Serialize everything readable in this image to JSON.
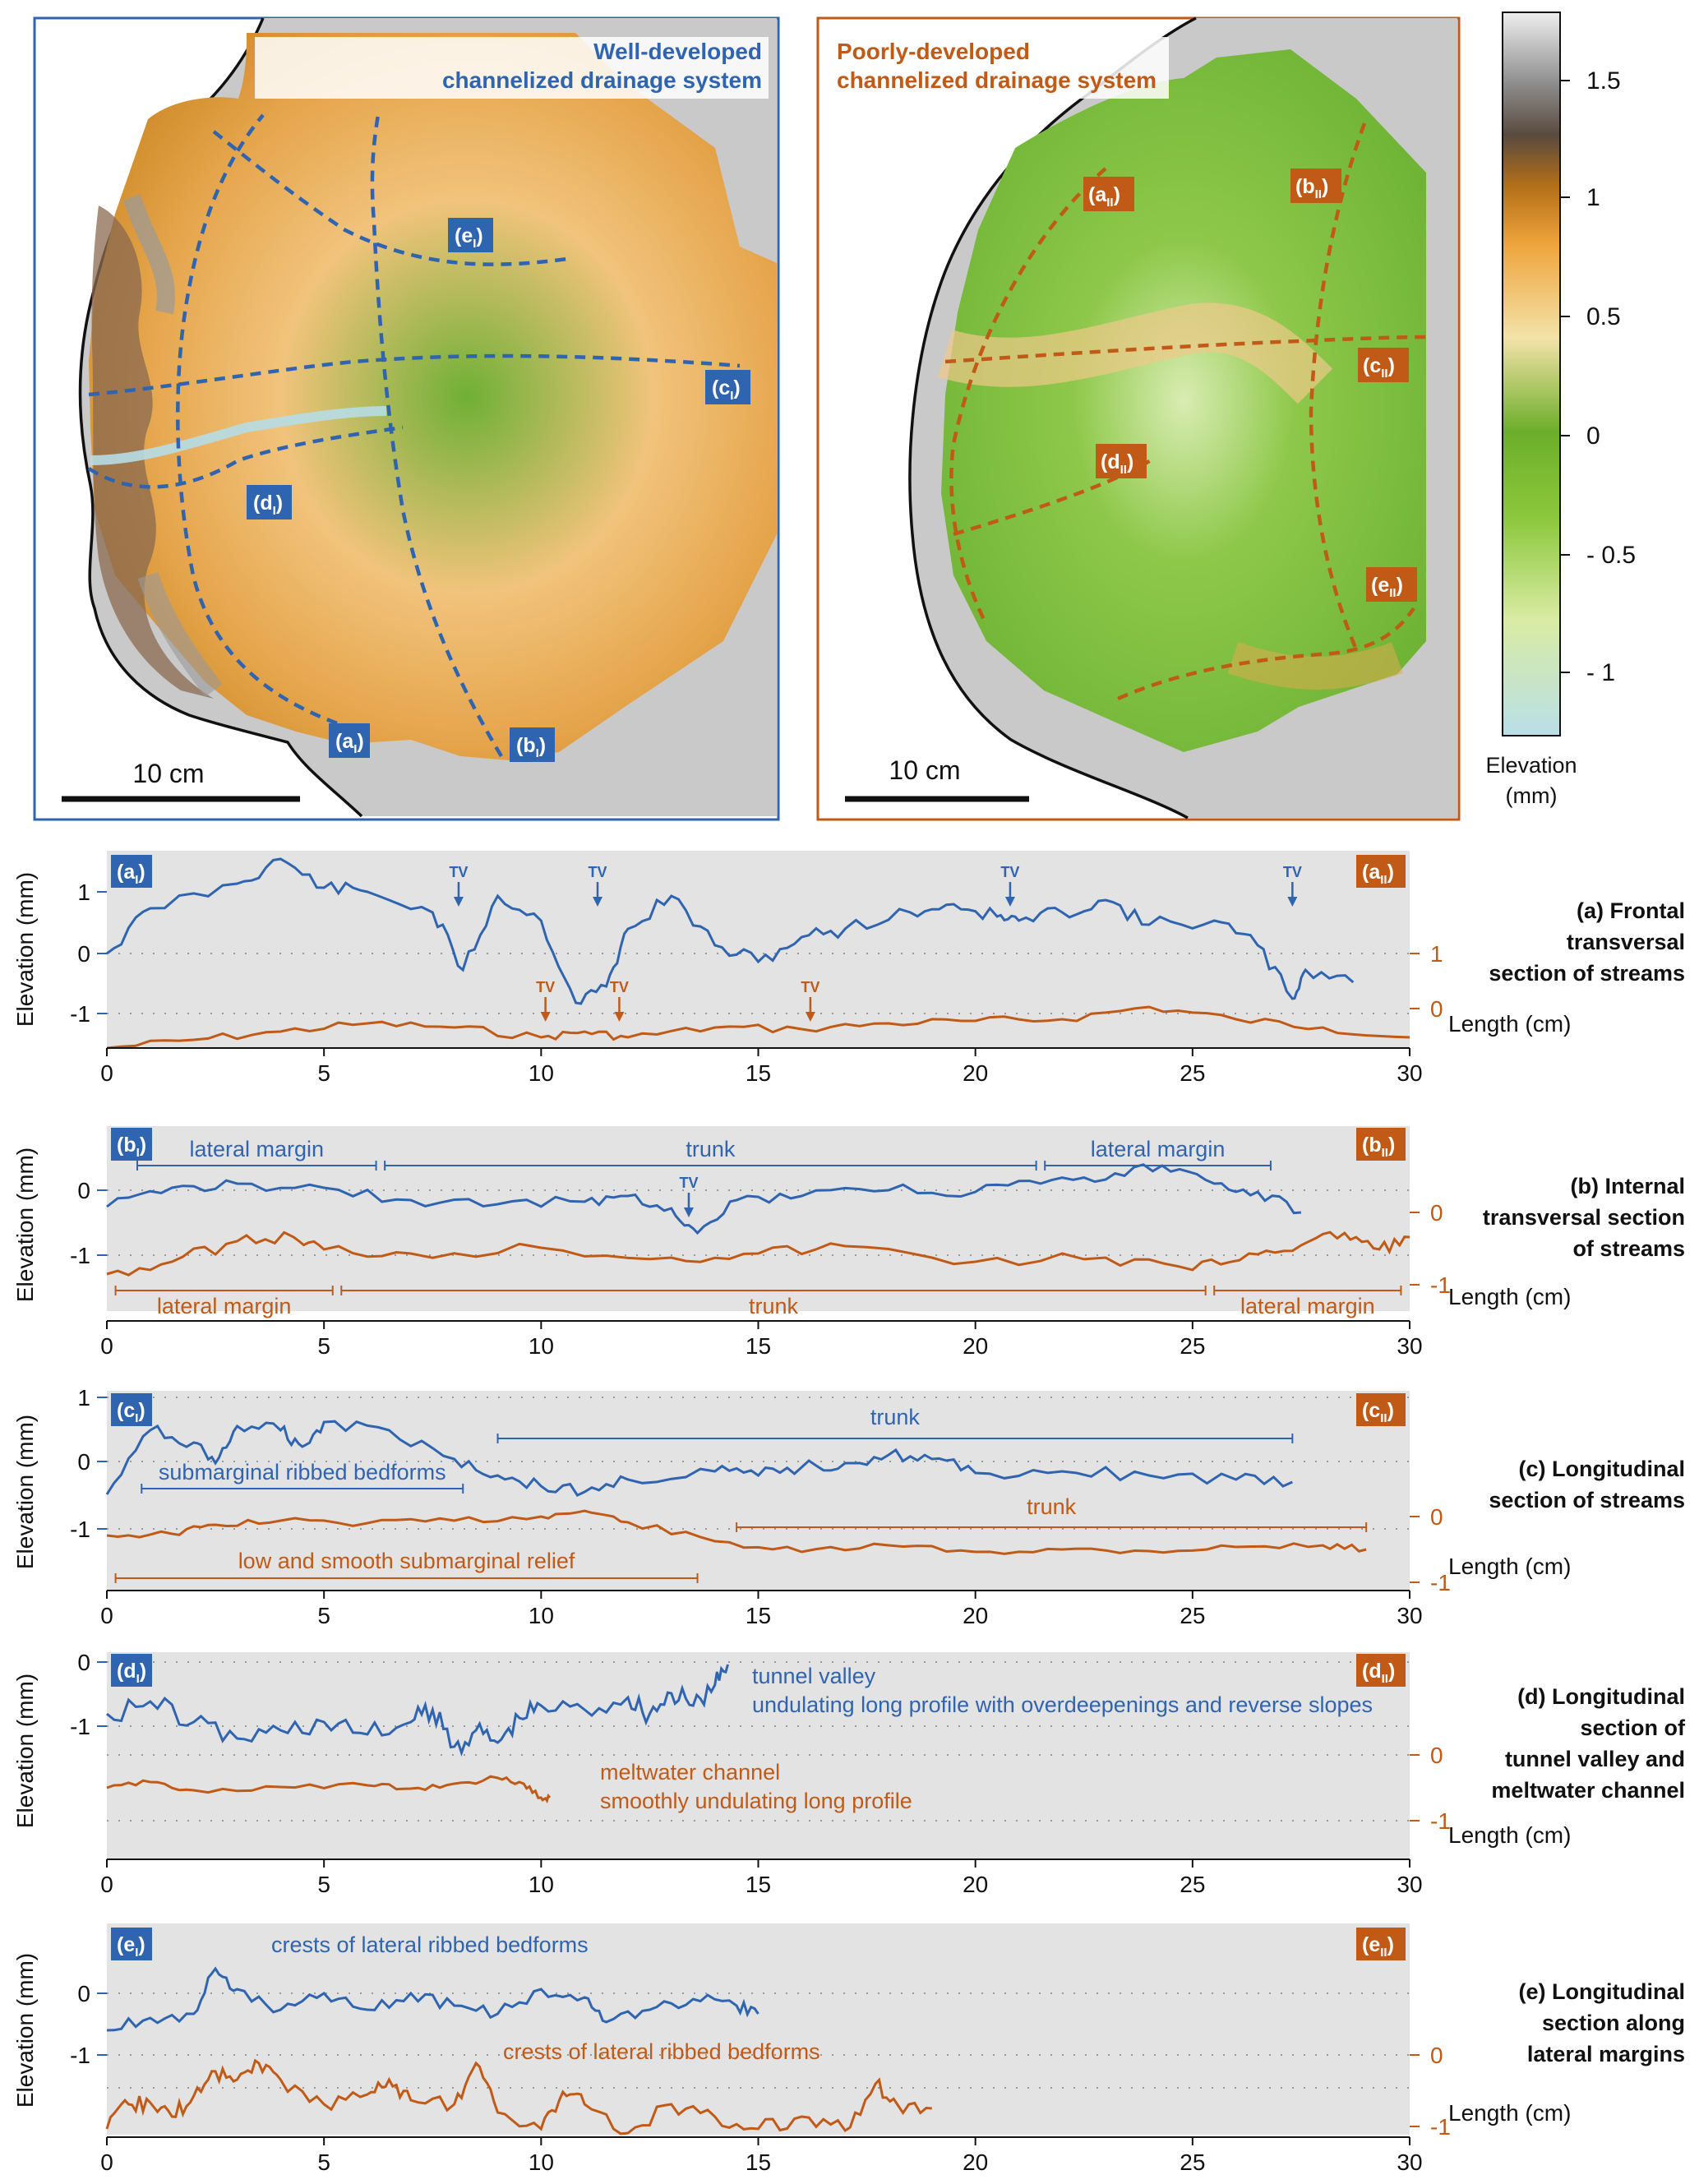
{
  "colors": {
    "blue": "#2f64b0",
    "orange": "#c05a16",
    "panel_bg": "#e3e3e3",
    "map_grey": "#c9c9c9"
  },
  "maps": {
    "left_title": [
      "Well-developed",
      "channelized drainage system"
    ],
    "right_title": [
      "Poorly-developed",
      "channelized drainage system"
    ],
    "scale_label": "10 cm",
    "left_tags": [
      "(a",
      "(b",
      "(c",
      "(d",
      "(e"
    ],
    "left_sub": "I",
    "right_sub": "II",
    "sub_close": ")"
  },
  "colorbar": {
    "ticks": [
      "1.5",
      "1",
      "0.5",
      "0",
      "- 0.5",
      "- 1"
    ],
    "label_line1": "Elevation",
    "label_line2": "(mm)"
  },
  "profiles": {
    "x_ticks": [
      "0",
      "5",
      "10",
      "15",
      "20",
      "25",
      "30"
    ],
    "x_label": "Length (cm)",
    "y_label": "Elevation (mm)",
    "panels": [
      {
        "caption": [
          "(a) Frontal",
          "transversal",
          "section of streams"
        ],
        "tag_left": "(a",
        "tag_right": "(a",
        "left_ticks": [
          "1",
          "0",
          "-1"
        ],
        "right_ticks": [
          "1",
          "0"
        ],
        "tv": "TV"
      },
      {
        "caption": [
          "(b) Internal",
          "transversal section",
          "of streams"
        ],
        "tag_left": "(b",
        "tag_right": "(b",
        "left_ticks": [
          "0",
          "-1"
        ],
        "right_ticks": [
          "0",
          "-1"
        ],
        "blue_labels": [
          "lateral margin",
          "trunk",
          "lateral margin"
        ],
        "orange_labels": [
          "lateral margin",
          "trunk",
          "lateral margin"
        ],
        "tv": "TV"
      },
      {
        "caption": [
          "(c) Longitudinal",
          "section of streams"
        ],
        "tag_left": "(c",
        "tag_right": "(c",
        "left_ticks": [
          "1",
          "0",
          "-1"
        ],
        "right_ticks": [
          "0",
          "-1"
        ],
        "blue_labels": [
          "trunk",
          "submarginal ribbed bedforms"
        ],
        "orange_labels": [
          "trunk",
          "low and smooth submarginal relief"
        ]
      },
      {
        "caption": [
          "(d) Longitudinal",
          "section of",
          "tunnel valley and",
          "meltwater channel"
        ],
        "tag_left": "(d",
        "tag_right": "(d",
        "left_ticks": [
          "0",
          "-1"
        ],
        "right_ticks": [
          "0",
          "-1"
        ],
        "blue_labels": [
          "tunnel valley",
          "undulating long profile with overdeepenings and reverse slopes"
        ],
        "orange_labels": [
          "meltwater channel",
          "smoothly undulating long profile"
        ]
      },
      {
        "caption": [
          "(e) Longitudinal",
          "section along",
          "lateral margins"
        ],
        "tag_left": "(e",
        "tag_right": "(e",
        "left_ticks": [
          "0",
          "-1"
        ],
        "right_ticks": [
          "0",
          "-1"
        ],
        "blue_labels": [
          "crests of lateral ribbed bedforms"
        ],
        "orange_labels": [
          "crests of lateral ribbed bedforms"
        ]
      }
    ]
  }
}
